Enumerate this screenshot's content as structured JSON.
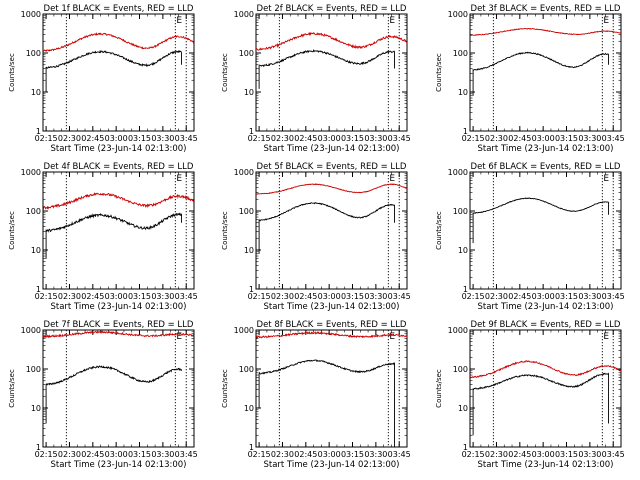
{
  "figure": {
    "background": "#ffffff",
    "axis_color": "#000000"
  },
  "chart_data": [
    {
      "type": "line",
      "title": "Det 1f BLACK = Events, RED = LLD",
      "xlabel": "Start Time (23-Jun-14 02:13:00)",
      "ylabel": "Counts/sec",
      "yscale": "log",
      "ylim": [
        1,
        1000
      ],
      "xlim": [
        "02:13",
        "03:50"
      ],
      "xticks": [
        "02:15",
        "02:30",
        "02:45",
        "03:00",
        "03:15",
        "03:30",
        "03:45"
      ],
      "yticks": [
        "1",
        "10",
        "100",
        "1000"
      ],
      "markers": [
        {
          "time": "02:28",
          "label": ""
        },
        {
          "time": "03:38",
          "label": "E"
        },
        {
          "time": "03:45",
          "label": ""
        }
      ],
      "series": [
        {
          "name": "LLD",
          "color": "#cc0000",
          "start": "02:13",
          "end": "03:50",
          "base": 110,
          "peaks": [
            [
              2.8,
              "02:50",
              18
            ],
            [
              2.4,
              "03:40",
              12
            ]
          ],
          "noise": 0.05
        },
        {
          "name": "Events",
          "color": "#000000",
          "start": "02:15",
          "end": "03:42",
          "base": 40,
          "peaks": [
            [
              2.7,
              "02:50",
              18
            ],
            [
              2.7,
              "03:40",
              12
            ]
          ],
          "noise": 0.05,
          "spike_start": 10,
          "drop_end": 50
        }
      ]
    },
    {
      "type": "line",
      "title": "Det 2f BLACK = Events, RED = LLD",
      "xlabel": "Start Time (23-Jun-14 02:13:00)",
      "ylabel": "Counts/sec",
      "yscale": "log",
      "ylim": [
        1,
        1000
      ],
      "xlim": [
        "02:13",
        "03:50"
      ],
      "xticks": [
        "02:15",
        "02:30",
        "02:45",
        "03:00",
        "03:15",
        "03:30",
        "03:45"
      ],
      "yticks": [
        "1",
        "10",
        "100",
        "1000"
      ],
      "markers": [
        {
          "time": "02:28",
          "label": ""
        },
        {
          "time": "03:38",
          "label": "E"
        },
        {
          "time": "03:45",
          "label": ""
        }
      ],
      "series": [
        {
          "name": "LLD",
          "color": "#cc0000",
          "start": "02:13",
          "end": "03:50",
          "base": 120,
          "peaks": [
            [
              2.6,
              "02:50",
              18
            ],
            [
              2.2,
              "03:40",
              12
            ]
          ],
          "noise": 0.06
        },
        {
          "name": "Events",
          "color": "#000000",
          "start": "02:15",
          "end": "03:42",
          "base": 45,
          "peaks": [
            [
              2.5,
              "02:50",
              18
            ],
            [
              2.4,
              "03:40",
              12
            ]
          ],
          "noise": 0.05,
          "spike_start": 12,
          "drop_end": 40
        }
      ]
    },
    {
      "type": "line",
      "title": "Det 3f BLACK = Events, RED = LLD",
      "xlabel": "Start Time (23-Jun-14 02:13:00)",
      "ylabel": "Counts/sec",
      "yscale": "log",
      "ylim": [
        1,
        1000
      ],
      "xlim": [
        "02:13",
        "03:50"
      ],
      "xticks": [
        "02:15",
        "02:30",
        "02:45",
        "03:00",
        "03:15",
        "03:30",
        "03:45"
      ],
      "yticks": [
        "1",
        "10",
        "100",
        "1000"
      ],
      "markers": [
        {
          "time": "02:28",
          "label": ""
        },
        {
          "time": "03:38",
          "label": "E"
        },
        {
          "time": "03:45",
          "label": ""
        }
      ],
      "series": [
        {
          "name": "LLD",
          "color": "#cc0000",
          "start": "02:13",
          "end": "03:50",
          "base": 280,
          "peaks": [
            [
              1.5,
              "02:50",
              20
            ],
            [
              1.3,
              "03:40",
              12
            ]
          ],
          "noise": 0.02
        },
        {
          "name": "Events",
          "color": "#000000",
          "start": "02:15",
          "end": "03:42",
          "base": 35,
          "peaks": [
            [
              2.9,
              "02:50",
              18
            ],
            [
              2.7,
              "03:40",
              12
            ]
          ],
          "noise": 0.03,
          "spike_start": 8,
          "drop_end": 50
        }
      ]
    },
    {
      "type": "line",
      "title": "Det 4f BLACK = Events, RED = LLD",
      "xlabel": "Start Time (23-Jun-14 02:13:00)",
      "ylabel": "Counts/sec",
      "yscale": "log",
      "ylim": [
        1,
        1000
      ],
      "xlim": [
        "02:13",
        "03:50"
      ],
      "xticks": [
        "02:15",
        "02:30",
        "02:45",
        "03:00",
        "03:15",
        "03:30",
        "03:45"
      ],
      "yticks": [
        "1",
        "10",
        "100",
        "1000"
      ],
      "markers": [
        {
          "time": "02:28",
          "label": ""
        },
        {
          "time": "03:38",
          "label": "E"
        },
        {
          "time": "03:45",
          "label": ""
        }
      ],
      "series": [
        {
          "name": "LLD",
          "color": "#cc0000",
          "start": "02:13",
          "end": "03:50",
          "base": 120,
          "peaks": [
            [
              2.3,
              "02:50",
              18
            ],
            [
              2.0,
              "03:40",
              12
            ]
          ],
          "noise": 0.07
        },
        {
          "name": "Events",
          "color": "#000000",
          "start": "02:15",
          "end": "03:42",
          "base": 30,
          "peaks": [
            [
              2.6,
              "02:50",
              18
            ],
            [
              2.7,
              "03:40",
              12
            ]
          ],
          "noise": 0.07,
          "spike_start": 6,
          "drop_end": 50
        }
      ]
    },
    {
      "type": "line",
      "title": "Det 5f BLACK = Events, RED = LLD",
      "xlabel": "Start Time (23-Jun-14 02:13:00)",
      "ylabel": "Counts/sec",
      "yscale": "log",
      "ylim": [
        1,
        1000
      ],
      "xlim": [
        "02:13",
        "03:50"
      ],
      "xticks": [
        "02:15",
        "02:30",
        "02:45",
        "03:00",
        "03:15",
        "03:30",
        "03:45"
      ],
      "yticks": [
        "1",
        "10",
        "100",
        "1000"
      ],
      "markers": [
        {
          "time": "02:28",
          "label": ""
        },
        {
          "time": "03:38",
          "label": "E"
        },
        {
          "time": "03:45",
          "label": ""
        }
      ],
      "series": [
        {
          "name": "LLD",
          "color": "#cc0000",
          "start": "02:13",
          "end": "03:50",
          "base": 270,
          "peaks": [
            [
              1.8,
              "02:50",
              18
            ],
            [
              1.8,
              "03:40",
              12
            ]
          ],
          "noise": 0.02
        },
        {
          "name": "Events",
          "color": "#000000",
          "start": "02:15",
          "end": "03:42",
          "base": 55,
          "peaks": [
            [
              2.9,
              "02:50",
              18
            ],
            [
              2.6,
              "03:40",
              12
            ]
          ],
          "noise": 0.03,
          "spike_start": 8,
          "drop_end": 50
        }
      ]
    },
    {
      "type": "line",
      "title": "Det 6f BLACK = Events, RED = LLD",
      "xlabel": "Start Time (23-Jun-14 02:13:00)",
      "ylabel": "Counts/sec",
      "yscale": "log",
      "ylim": [
        1,
        1000
      ],
      "xlim": [
        "02:13",
        "03:50"
      ],
      "xticks": [
        "02:15",
        "02:30",
        "02:45",
        "03:00",
        "03:15",
        "03:30",
        "03:45"
      ],
      "yticks": [
        "1",
        "10",
        "100",
        "1000"
      ],
      "markers": [
        {
          "time": "02:28",
          "label": ""
        },
        {
          "time": "03:38",
          "label": "E"
        },
        {
          "time": "03:45",
          "label": ""
        }
      ],
      "series": [
        {
          "name": "Events",
          "color": "#000000",
          "start": "02:15",
          "end": "03:42",
          "base": 85,
          "peaks": [
            [
              2.5,
              "02:50",
              18
            ],
            [
              2.0,
              "03:40",
              12
            ]
          ],
          "noise": 0.02,
          "spike_start": 15,
          "drop_end": 80
        }
      ]
    },
    {
      "type": "line",
      "title": "Det 7f BLACK = Events, RED = LLD",
      "xlabel": "Start Time (23-Jun-14 02:13:00)",
      "ylabel": "Counts/sec",
      "yscale": "log",
      "ylim": [
        1,
        1000
      ],
      "xlim": [
        "02:13",
        "03:50"
      ],
      "xticks": [
        "02:15",
        "02:30",
        "02:45",
        "03:00",
        "03:15",
        "03:30",
        "03:45"
      ],
      "yticks": [
        "1",
        "10",
        "100",
        "1000"
      ],
      "markers": [
        {
          "time": "02:28",
          "label": ""
        },
        {
          "time": "03:38",
          "label": "E"
        },
        {
          "time": "03:45",
          "label": ""
        }
      ],
      "series": [
        {
          "name": "LLD",
          "color": "#cc0000",
          "start": "02:13",
          "end": "03:50",
          "base": 680,
          "peaks": [
            [
              1.3,
              "02:50",
              20
            ],
            [
              1.15,
              "03:40",
              12
            ]
          ],
          "noise": 0.05
        },
        {
          "name": "Events",
          "color": "#000000",
          "start": "02:15",
          "end": "03:42",
          "base": 38,
          "peaks": [
            [
              3.0,
              "02:50",
              18
            ],
            [
              2.6,
              "03:40",
              12
            ]
          ],
          "noise": 0.05,
          "spike_start": 4,
          "drop_end": 90
        }
      ]
    },
    {
      "type": "line",
      "title": "Det 8f BLACK = Events, RED = LLD",
      "xlabel": "Start Time (23-Jun-14 02:13:00)",
      "ylabel": "Counts/sec",
      "yscale": "log",
      "ylim": [
        1,
        1000
      ],
      "xlim": [
        "02:13",
        "03:50"
      ],
      "xticks": [
        "02:15",
        "02:30",
        "02:45",
        "03:00",
        "03:15",
        "03:30",
        "03:45"
      ],
      "yticks": [
        "1",
        "10",
        "100",
        "1000"
      ],
      "markers": [
        {
          "time": "02:28",
          "label": ""
        },
        {
          "time": "03:38",
          "label": "E"
        },
        {
          "time": "03:45",
          "label": ""
        }
      ],
      "series": [
        {
          "name": "LLD",
          "color": "#cc0000",
          "start": "02:13",
          "end": "03:50",
          "base": 650,
          "peaks": [
            [
              1.3,
              "02:50",
              20
            ],
            [
              1.15,
              "03:40",
              12
            ]
          ],
          "noise": 0.05
        },
        {
          "name": "Events",
          "color": "#000000",
          "start": "02:15",
          "end": "03:42",
          "base": 75,
          "peaks": [
            [
              2.2,
              "02:50",
              18
            ],
            [
              1.8,
              "03:40",
              12
            ]
          ],
          "noise": 0.04,
          "spike_start": 10,
          "drop_end": 1
        }
      ]
    },
    {
      "type": "line",
      "title": "Det 9f BLACK = Events, RED = LLD",
      "xlabel": "Start Time (23-Jun-14 02:13:00)",
      "ylabel": "Counts/sec",
      "yscale": "log",
      "ylim": [
        1,
        1000
      ],
      "xlim": [
        "02:13",
        "03:50"
      ],
      "xticks": [
        "02:15",
        "02:30",
        "02:45",
        "03:00",
        "03:15",
        "03:30",
        "03:45"
      ],
      "yticks": [
        "1",
        "10",
        "100",
        "1000"
      ],
      "markers": [
        {
          "time": "02:28",
          "label": ""
        },
        {
          "time": "03:38",
          "label": "E"
        },
        {
          "time": "03:45",
          "label": ""
        }
      ],
      "series": [
        {
          "name": "LLD",
          "color": "#cc0000",
          "start": "02:13",
          "end": "03:50",
          "base": 60,
          "peaks": [
            [
              2.6,
              "02:50",
              18
            ],
            [
              2.0,
              "03:40",
              12
            ]
          ],
          "noise": 0.04
        },
        {
          "name": "Events",
          "color": "#000000",
          "start": "02:15",
          "end": "03:42",
          "base": 30,
          "peaks": [
            [
              2.3,
              "02:50",
              18
            ],
            [
              2.5,
              "03:40",
              12
            ]
          ],
          "noise": 0.04,
          "spike_start": 2,
          "drop_end": 4
        }
      ]
    }
  ]
}
